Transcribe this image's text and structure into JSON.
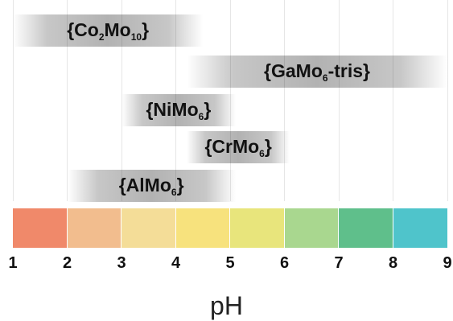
{
  "chart_data": {
    "type": "range-diagram",
    "xlabel": "pH",
    "x_ticks": [
      "1",
      "2",
      "3",
      "4",
      "5",
      "6",
      "7",
      "8",
      "9"
    ],
    "xlim": [
      1,
      9
    ],
    "ranges": [
      {
        "label_prefix": "{Co",
        "sub1": "2",
        "mid": "Mo",
        "sub2": "10",
        "suffix": "}",
        "from": 1.0,
        "to": 4.5
      },
      {
        "label_prefix": "{GaMo",
        "sub1": "6",
        "mid": "-tris}",
        "sub2": "",
        "suffix": "",
        "from": 4.2,
        "to": 9.0
      },
      {
        "label_prefix": "{NiMo",
        "sub1": "6",
        "mid": "}",
        "sub2": "",
        "suffix": "",
        "from": 3.0,
        "to": 5.1
      },
      {
        "label_prefix": "{CrMo",
        "sub1": "6",
        "mid": "}",
        "sub2": "",
        "suffix": "",
        "from": 4.2,
        "to": 6.1
      },
      {
        "label_prefix": "{AlMo",
        "sub1": "6",
        "mid": "}",
        "sub2": "",
        "suffix": "",
        "from": 2.0,
        "to": 5.1
      }
    ],
    "ph_colors": [
      "#f0896a",
      "#f2bd8e",
      "#f4dd98",
      "#f7e27d",
      "#e8e57c",
      "#a9d78f",
      "#5fbf8b",
      "#4fc4cb"
    ]
  }
}
